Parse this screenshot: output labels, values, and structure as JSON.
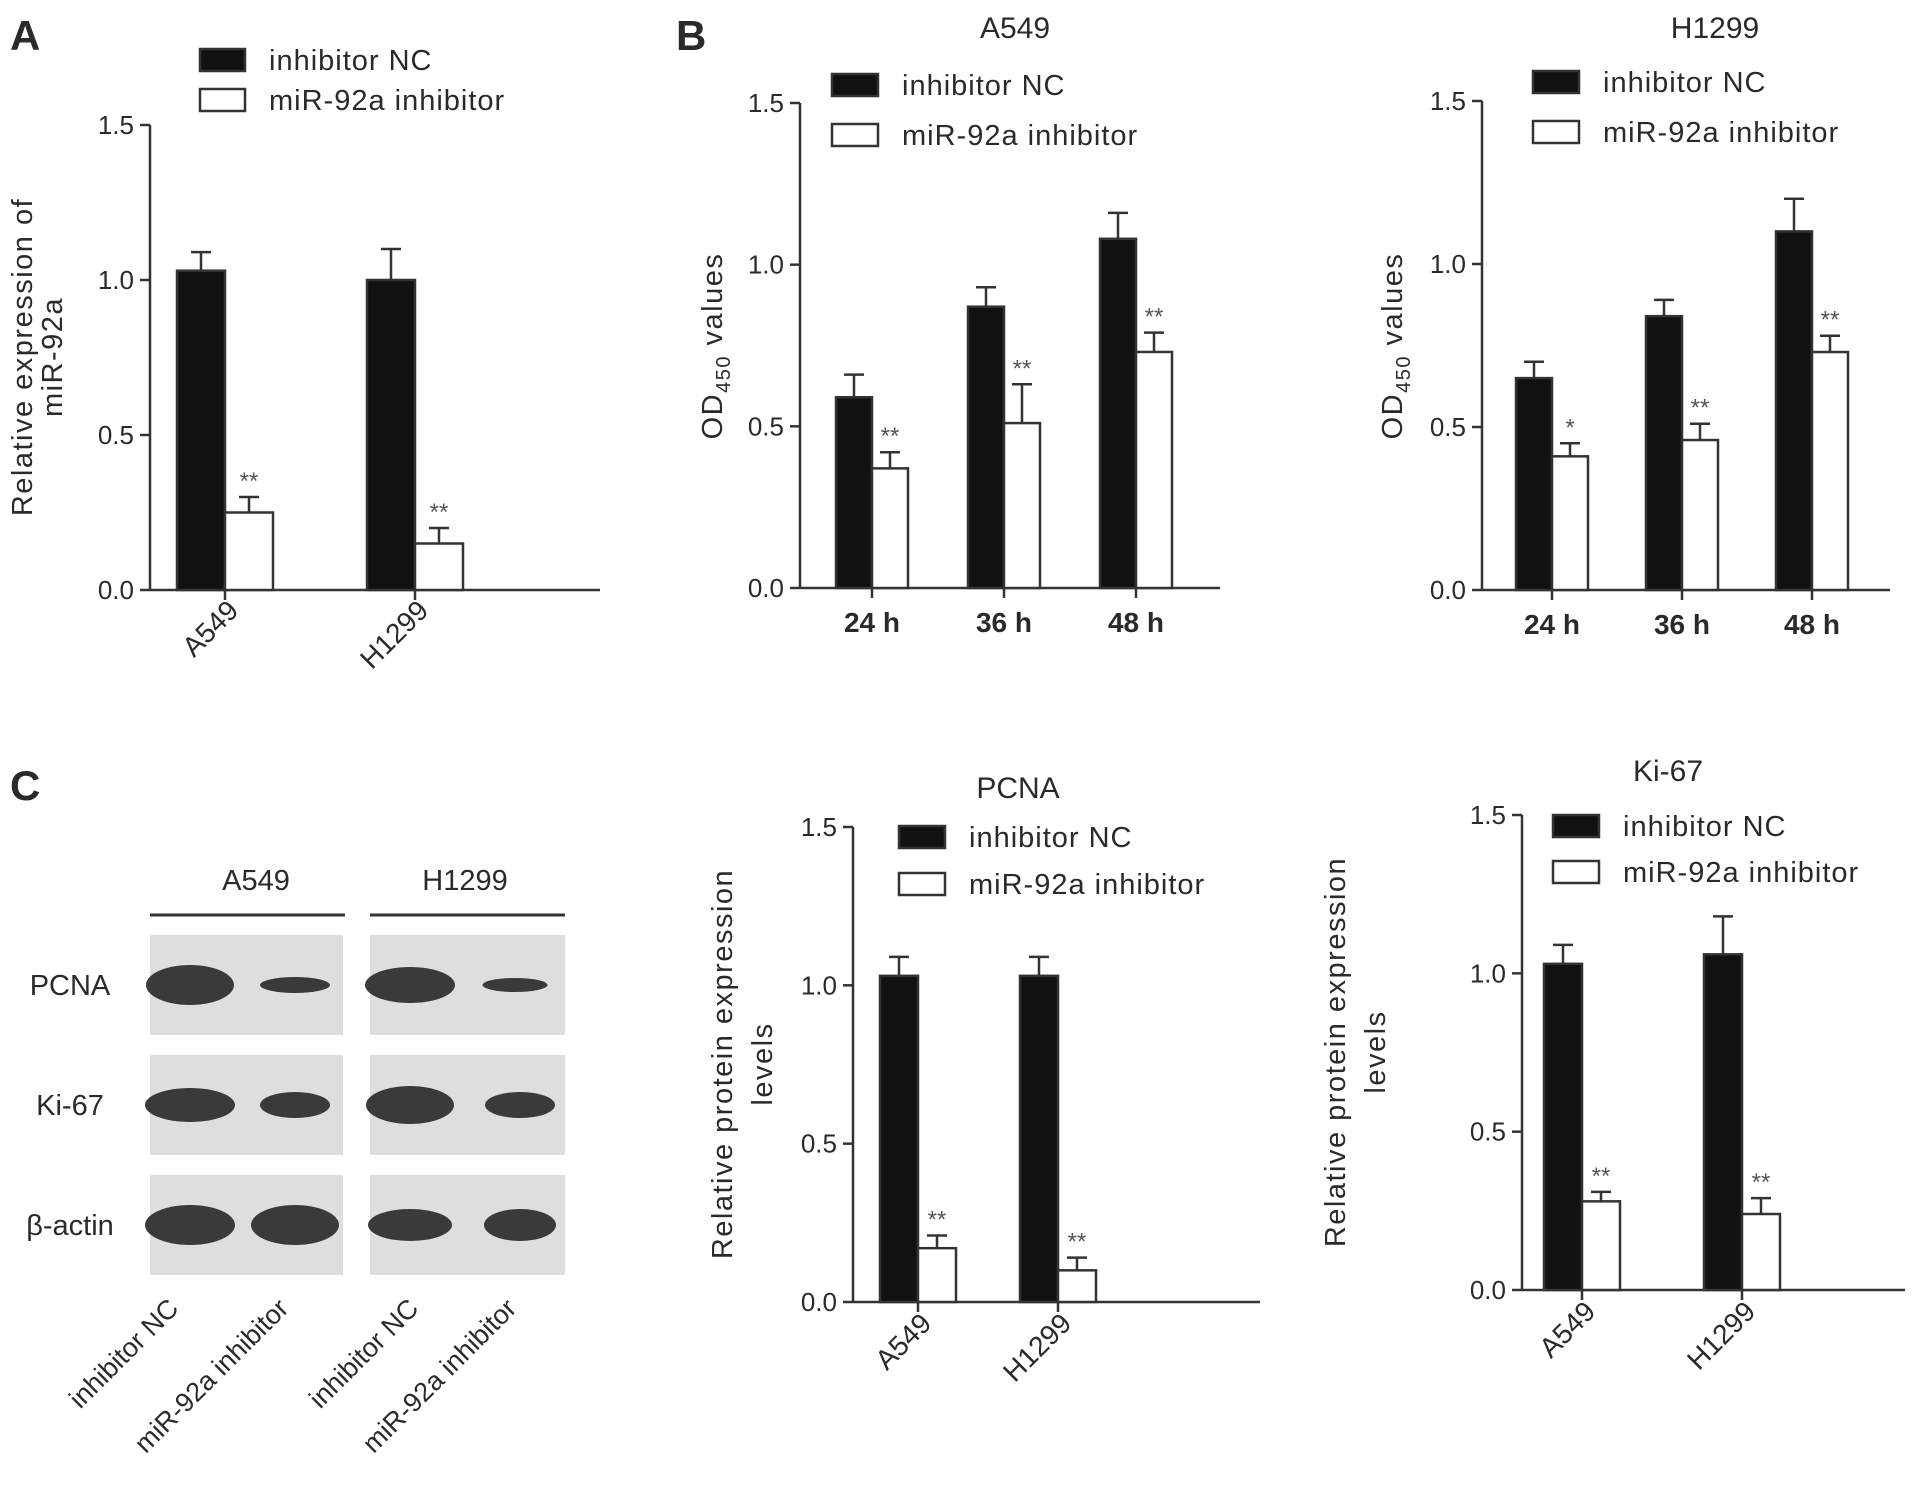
{
  "panels": [
    {
      "letter": "A"
    },
    {
      "letter": "B"
    },
    {
      "letter": "C"
    }
  ],
  "legend": {
    "nc": "inhibitor NC",
    "inh": "miR-92a inhibitor"
  },
  "colors": {
    "nc": "#111111",
    "inh": "#ffffff",
    "axis": "#333333",
    "band": "#3a3a3a"
  },
  "chart_data": [
    {
      "id": "A",
      "type": "bar",
      "title": "",
      "ylabel": [
        "Relative expression of",
        "miR-92a"
      ],
      "xlabel": "",
      "categories": [
        "A549",
        "H1299"
      ],
      "ylim": [
        0,
        1.5
      ],
      "yticks": [
        "0.0",
        "0.5",
        "1.0",
        "1.5"
      ],
      "series": [
        {
          "name": "inhibitor NC",
          "values": [
            1.03,
            1.0
          ],
          "errors": [
            0.06,
            0.1
          ],
          "sig": [
            "",
            ""
          ]
        },
        {
          "name": "miR-92a inhibitor",
          "values": [
            0.25,
            0.15
          ],
          "errors": [
            0.05,
            0.05
          ],
          "sig": [
            "**",
            "**"
          ]
        }
      ],
      "legend_position": "top"
    },
    {
      "id": "B1",
      "type": "bar",
      "title": "A549",
      "ylabel": [
        "OD450 values"
      ],
      "xlabel": "",
      "categories": [
        "24 h",
        "36 h",
        "48 h"
      ],
      "ylim": [
        0,
        1.5
      ],
      "yticks": [
        "0.0",
        "0.5",
        "1.0",
        "1.5"
      ],
      "series": [
        {
          "name": "inhibitor NC",
          "values": [
            0.59,
            0.87,
            1.08
          ],
          "errors": [
            0.07,
            0.06,
            0.08
          ],
          "sig": [
            "",
            "",
            ""
          ]
        },
        {
          "name": "miR-92a inhibitor",
          "values": [
            0.37,
            0.51,
            0.73
          ],
          "errors": [
            0.05,
            0.12,
            0.06
          ],
          "sig": [
            "**",
            "**",
            "**"
          ]
        }
      ],
      "legend_position": "top"
    },
    {
      "id": "B2",
      "type": "bar",
      "title": "H1299",
      "ylabel": [
        "OD450 values"
      ],
      "xlabel": "",
      "categories": [
        "24 h",
        "36 h",
        "48 h"
      ],
      "ylim": [
        0,
        1.5
      ],
      "yticks": [
        "0.0",
        "0.5",
        "1.0",
        "1.5"
      ],
      "series": [
        {
          "name": "inhibitor NC",
          "values": [
            0.65,
            0.84,
            1.1
          ],
          "errors": [
            0.05,
            0.05,
            0.1
          ],
          "sig": [
            "",
            "",
            ""
          ]
        },
        {
          "name": "miR-92a inhibitor",
          "values": [
            0.41,
            0.46,
            0.73
          ],
          "errors": [
            0.04,
            0.05,
            0.05
          ],
          "sig": [
            "*",
            "**",
            "**"
          ]
        }
      ],
      "legend_position": "top"
    },
    {
      "id": "C1",
      "type": "bar",
      "title": "PCNA",
      "ylabel": [
        "Relative protein expression",
        "levels"
      ],
      "xlabel": "",
      "categories": [
        "A549",
        "H1299"
      ],
      "ylim": [
        0,
        1.5
      ],
      "yticks": [
        "0.0",
        "0.5",
        "1.0",
        "1.5"
      ],
      "series": [
        {
          "name": "inhibitor NC",
          "values": [
            1.03,
            1.03
          ],
          "errors": [
            0.06,
            0.06
          ],
          "sig": [
            "",
            ""
          ]
        },
        {
          "name": "miR-92a inhibitor",
          "values": [
            0.17,
            0.1
          ],
          "errors": [
            0.04,
            0.04
          ],
          "sig": [
            "**",
            "**"
          ]
        }
      ],
      "legend_position": "top"
    },
    {
      "id": "C2",
      "type": "bar",
      "title": "Ki-67",
      "ylabel": [
        "Relative protein expression",
        "levels"
      ],
      "xlabel": "",
      "categories": [
        "A549",
        "H1299"
      ],
      "ylim": [
        0,
        1.5
      ],
      "yticks": [
        "0.0",
        "0.5",
        "1.0",
        "1.5"
      ],
      "series": [
        {
          "name": "inhibitor NC",
          "values": [
            1.03,
            1.06
          ],
          "errors": [
            0.06,
            0.12
          ],
          "sig": [
            "",
            ""
          ]
        },
        {
          "name": "miR-92a inhibitor",
          "values": [
            0.28,
            0.24
          ],
          "errors": [
            0.03,
            0.05
          ],
          "sig": [
            "**",
            "**"
          ]
        }
      ],
      "legend_position": "top"
    }
  ],
  "blot": {
    "cell_lines": [
      "A549",
      "H1299"
    ],
    "proteins": [
      "PCNA",
      "Ki-67",
      "β-actin"
    ],
    "lanes": [
      "inhibitor NC",
      "miR-92a inhibitor",
      "inhibitor NC",
      "miR-92a inhibitor"
    ]
  }
}
